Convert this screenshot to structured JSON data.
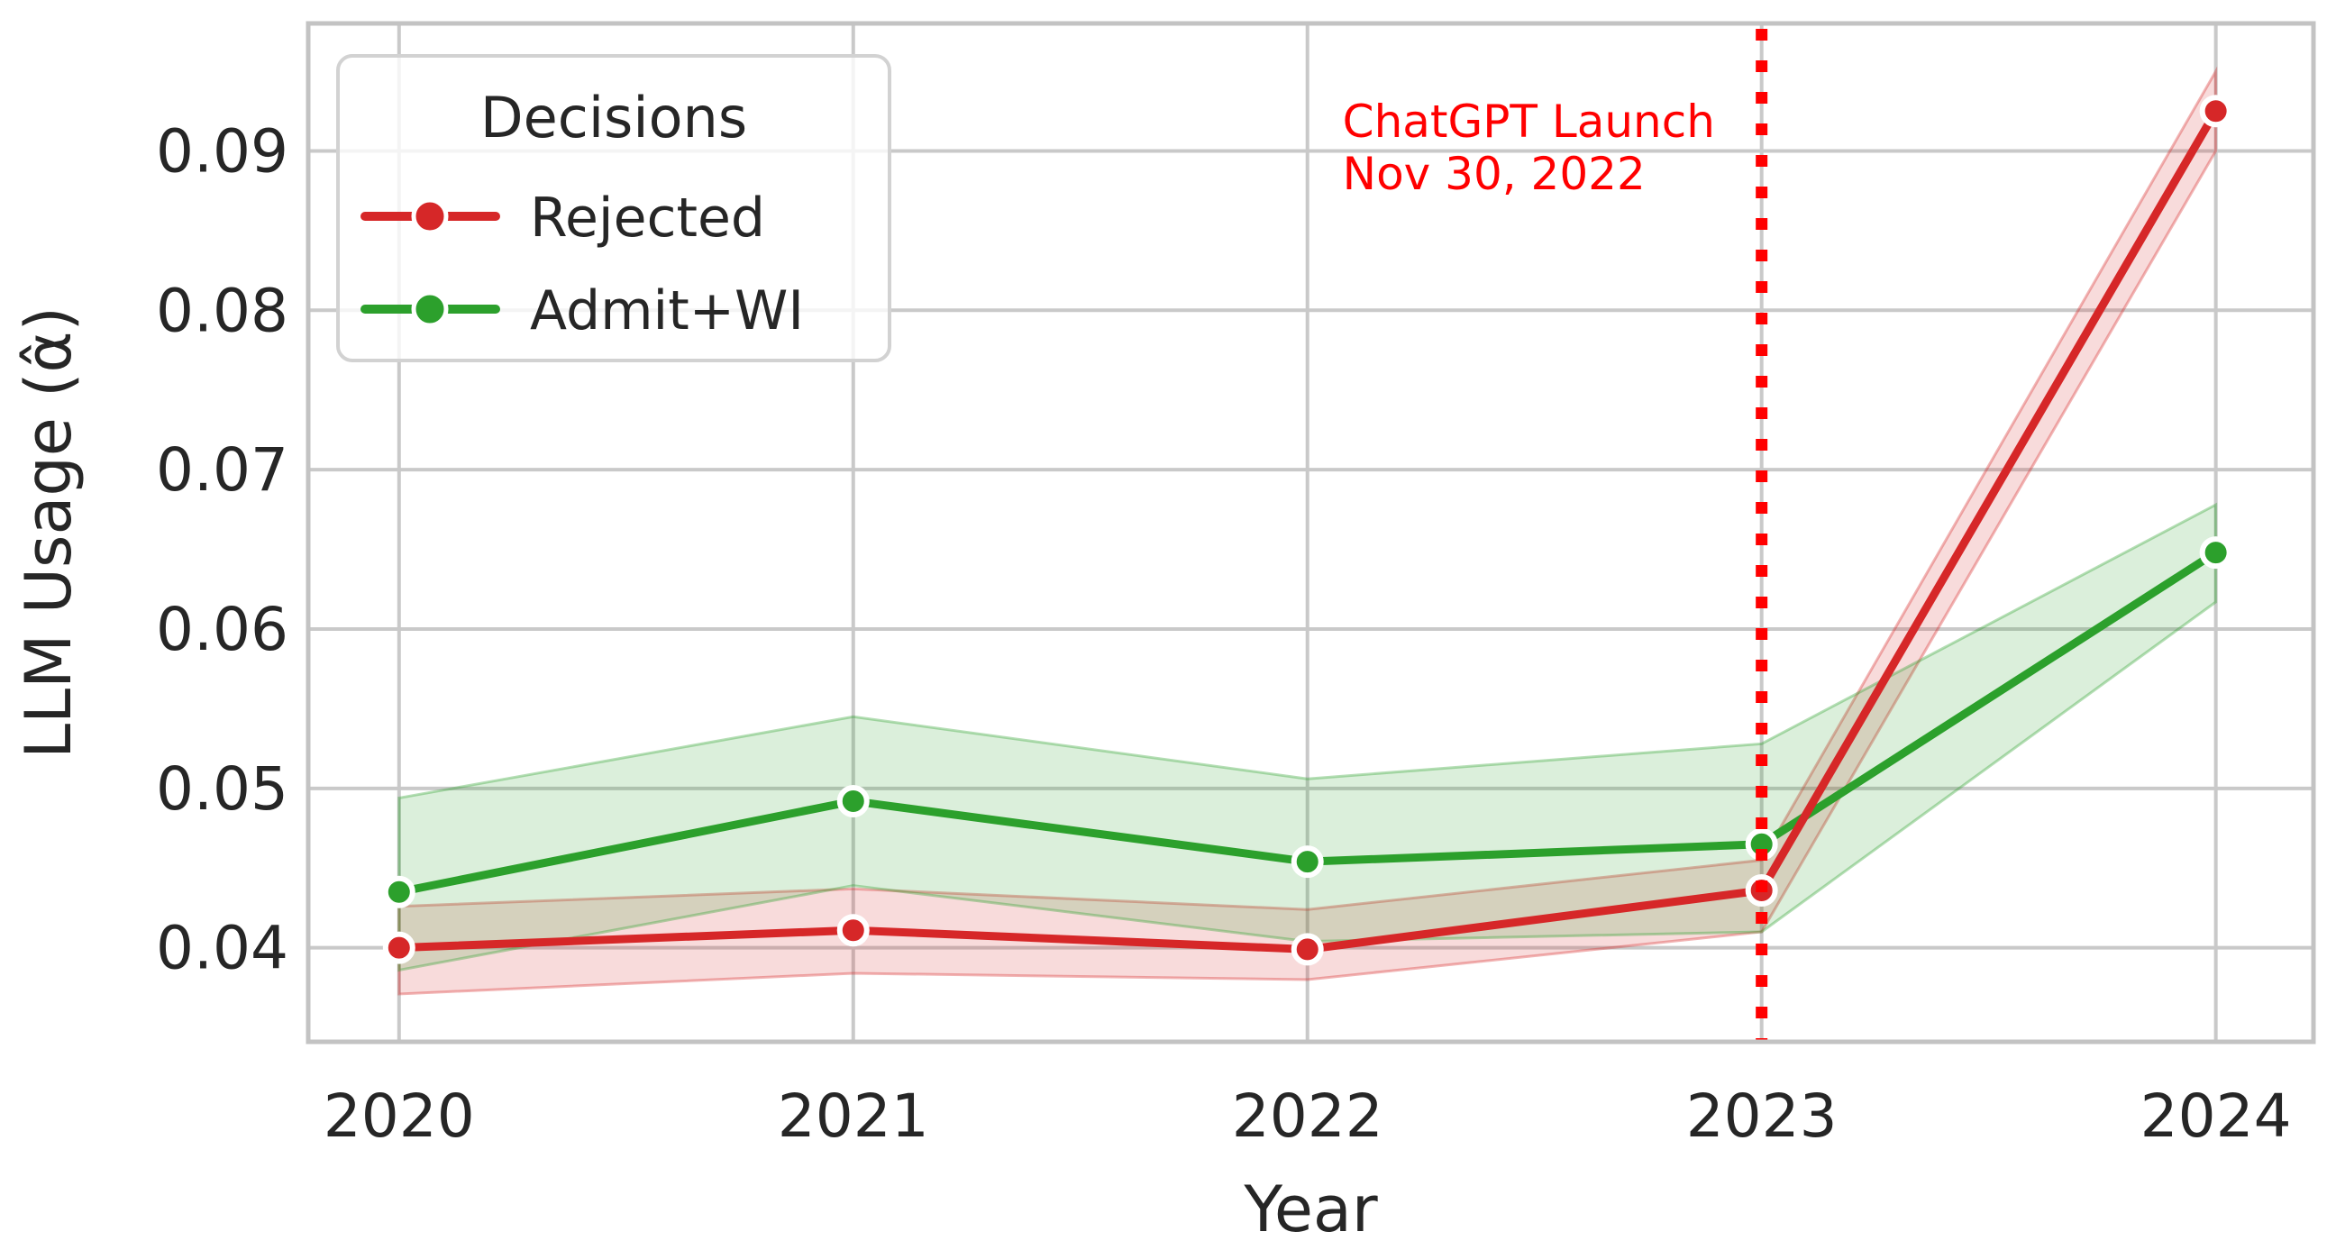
{
  "figure": {
    "background": "#ffffff",
    "plot_background": "#ffffff",
    "grid_color": "#c9c9c9",
    "spine_color": "#c3c3c3",
    "text_color": "#262626"
  },
  "chart_data": {
    "type": "line",
    "title": "",
    "xlabel": "Year",
    "ylabel": "LLM Usage (α̂)",
    "x": [
      2020,
      2021,
      2022,
      2023,
      2024
    ],
    "x_tick_labels": [
      "2020",
      "2021",
      "2022",
      "2023",
      "2024"
    ],
    "y_ticks": [
      0.04,
      0.05,
      0.06,
      0.07,
      0.08,
      0.09
    ],
    "y_tick_labels": [
      "0.04",
      "0.05",
      "0.06",
      "0.07",
      "0.08",
      "0.09"
    ],
    "xlim": [
      2019.8,
      2024.215
    ],
    "ylim": [
      0.0341,
      0.098
    ],
    "grid": true,
    "series": [
      {
        "name": "Rejected",
        "color": "#d62728",
        "values": [
          0.04,
          0.0411,
          0.0399,
          0.0436,
          0.0925
        ],
        "band_low": [
          0.0371,
          0.0384,
          0.038,
          0.041,
          0.09
        ],
        "band_high": [
          0.0426,
          0.0437,
          0.0424,
          0.0455,
          0.095
        ]
      },
      {
        "name": "Admit+WI",
        "color": "#2ca02c",
        "values": [
          0.0435,
          0.0492,
          0.0454,
          0.0465,
          0.0648
        ],
        "band_low": [
          0.0386,
          0.0439,
          0.0404,
          0.041,
          0.0617
        ],
        "band_high": [
          0.0494,
          0.0545,
          0.0506,
          0.0528,
          0.0678
        ]
      }
    ],
    "legend": {
      "title": "Decisions",
      "position": "upper left",
      "entries": [
        "Rejected",
        "Admit+WI"
      ]
    },
    "annotation": {
      "lines": [
        "ChatGPT Launch",
        "Nov 30, 2022"
      ],
      "color": "#ff0000",
      "vline_x": 2023,
      "vline_style": "dotted"
    }
  }
}
